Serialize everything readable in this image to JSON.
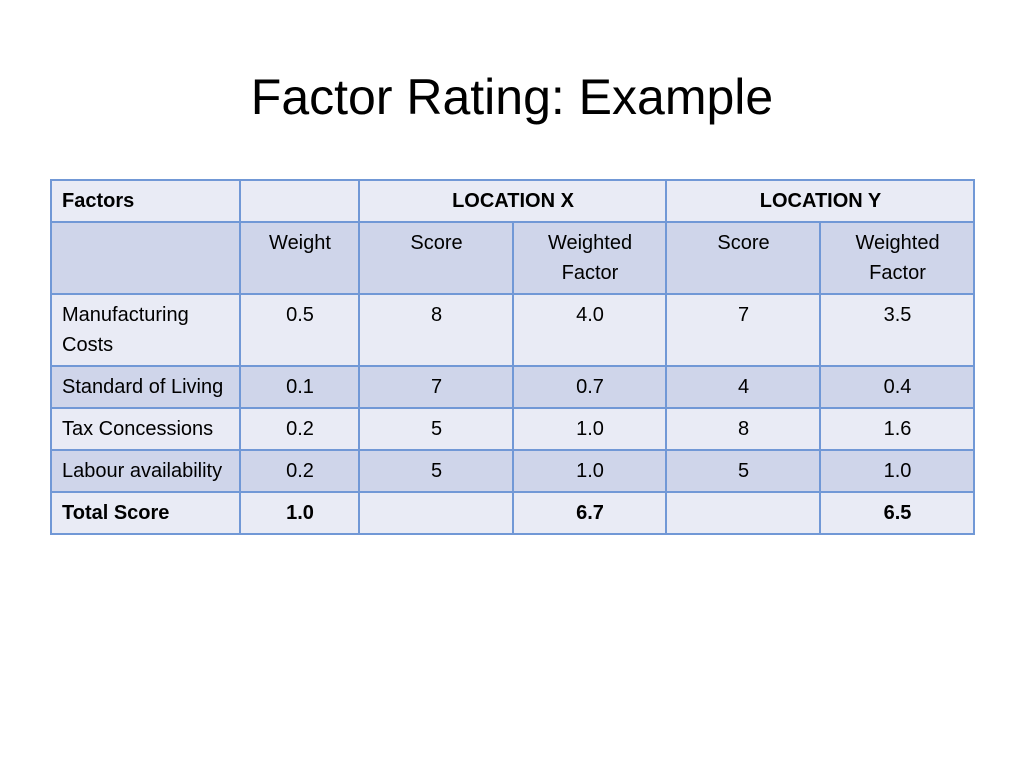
{
  "slide": {
    "title": "Factor Rating: Example"
  },
  "table": {
    "header": {
      "factors": "Factors",
      "blank": "",
      "location_x": "LOCATION X",
      "location_y": "LOCATION Y"
    },
    "subheader": {
      "blank": "",
      "weight": "Weight",
      "x_score": "Score",
      "x_weighted": "Weighted Factor",
      "y_score": "Score",
      "y_weighted": "Weighted Factor"
    },
    "rows": [
      {
        "factor": "Manufacturing Costs",
        "weight": "0.5",
        "x_score": "8",
        "x_weighted": "4.0",
        "y_score": "7",
        "y_weighted": "3.5"
      },
      {
        "factor": "Standard of Living",
        "weight": "0.1",
        "x_score": "7",
        "x_weighted": "0.7",
        "y_score": "4",
        "y_weighted": "0.4"
      },
      {
        "factor": "Tax Concessions",
        "weight": "0.2",
        "x_score": "5",
        "x_weighted": "1.0",
        "y_score": "8",
        "y_weighted": "1.6"
      },
      {
        "factor": "Labour availability",
        "weight": "0.2",
        "x_score": "5",
        "x_weighted": "1.0",
        "y_score": "5",
        "y_weighted": "1.0"
      }
    ],
    "total": {
      "label": "Total Score",
      "weight": "1.0",
      "x_score": "",
      "x_weighted": "6.7",
      "y_score": "",
      "y_weighted": "6.5"
    }
  },
  "colors": {
    "border": "#7198d6",
    "band_light": "#e9ebf5",
    "band_dark": "#cfd5ea"
  }
}
